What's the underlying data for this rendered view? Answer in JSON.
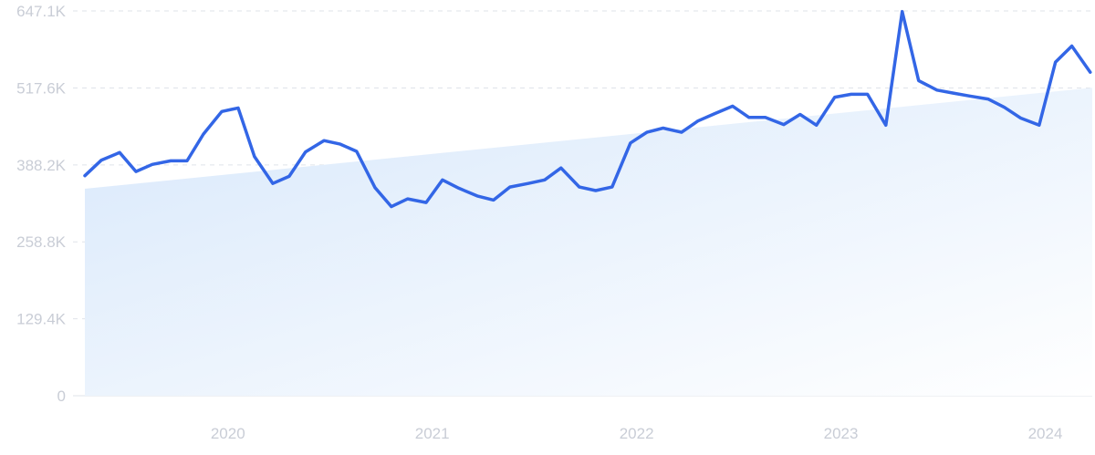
{
  "colors": {
    "line": "#3366e6",
    "area_top": "#d8e8fb",
    "area_bottom": "#ffffff",
    "grid": "#dfe3ea",
    "tick_text": "#c9cdd6",
    "baseline": "#dfe3ea"
  },
  "chart_data": {
    "type": "line",
    "title": "",
    "xlabel": "",
    "ylabel": "",
    "ylim": [
      0,
      647100
    ],
    "y_ticks": [
      {
        "value": 0,
        "label": "0"
      },
      {
        "value": 129400,
        "label": "129.4K"
      },
      {
        "value": 258800,
        "label": "258.8K"
      },
      {
        "value": 388200,
        "label": "388.2K"
      },
      {
        "value": 517600,
        "label": "517.6K"
      },
      {
        "value": 647100,
        "label": "647.1K"
      }
    ],
    "x_ticks": [
      {
        "value": 2020.0,
        "label": "2020"
      },
      {
        "value": 2021.0,
        "label": "2021"
      },
      {
        "value": 2022.0,
        "label": "2022"
      },
      {
        "value": 2023.0,
        "label": "2023"
      },
      {
        "value": 2024.0,
        "label": "2024"
      }
    ],
    "xlim": [
      2019.3,
      2024.23
    ],
    "grid": true,
    "trend": {
      "x": [
        2019.3,
        2024.23
      ],
      "y": [
        348000,
        518000
      ]
    },
    "series": [
      {
        "x": [
          2019.3,
          2019.38,
          2019.47,
          2019.55,
          2019.63,
          2019.72,
          2019.8,
          2019.88,
          2019.97,
          2020.05,
          2020.13,
          2020.22,
          2020.3,
          2020.38,
          2020.47,
          2020.55,
          2020.63,
          2020.72,
          2020.8,
          2020.88,
          2020.97,
          2021.05,
          2021.13,
          2021.22,
          2021.3,
          2021.38,
          2021.47,
          2021.55,
          2021.63,
          2021.72,
          2021.8,
          2021.88,
          2021.97,
          2022.05,
          2022.13,
          2022.22,
          2022.3,
          2022.38,
          2022.47,
          2022.55,
          2022.63,
          2022.72,
          2022.8,
          2022.88,
          2022.97,
          2023.05,
          2023.13,
          2023.22,
          2023.3,
          2023.38,
          2023.47,
          2023.55,
          2023.63,
          2023.72,
          2023.8,
          2023.88,
          2023.97,
          2024.05,
          2024.13,
          2024.22
        ],
        "y": [
          370000,
          396000,
          409000,
          377000,
          389000,
          395000,
          395000,
          440000,
          478000,
          484000,
          402000,
          357000,
          369000,
          410000,
          429000,
          423000,
          411000,
          350000,
          318000,
          331000,
          325000,
          363000,
          349000,
          336000,
          329000,
          351000,
          357000,
          363000,
          383000,
          351000,
          345000,
          351000,
          425000,
          443000,
          450000,
          443000,
          462000,
          474000,
          487000,
          468000,
          468000,
          456000,
          473000,
          455000,
          502000,
          507000,
          507000,
          455000,
          646000,
          530000,
          514000,
          509000,
          504000,
          499000,
          485000,
          467000,
          455000,
          561000,
          588000,
          544000
        ]
      }
    ]
  }
}
